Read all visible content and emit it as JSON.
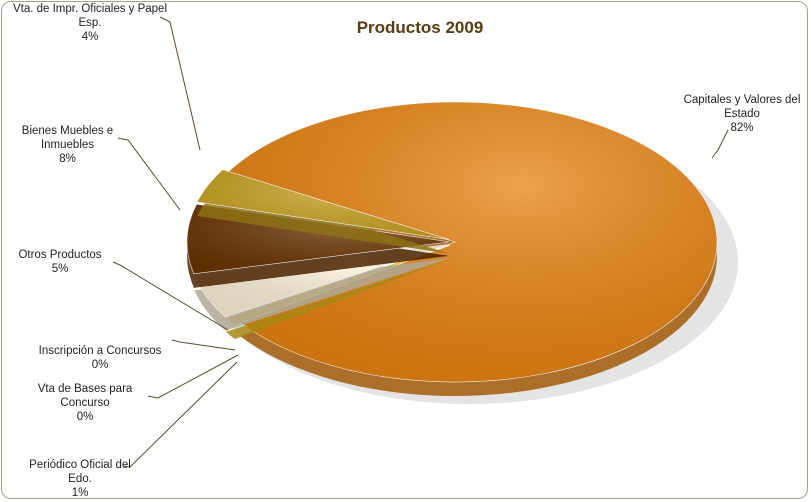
{
  "chart_data": {
    "type": "pie",
    "title": "Productos 2009",
    "categories": [
      "Capitales y Valores del Estado",
      "Periódico Oficial del Edo.",
      "Vta de Bases para Concurso",
      "Inscripción a Concursos",
      "Otros Productos",
      "Bienes Muebles e Inmuebles",
      "Vta. de Impr. Oficiales y Papel Esp."
    ],
    "values": [
      82,
      1,
      0,
      0,
      5,
      8,
      4
    ],
    "value_labels": [
      "82%",
      "1%",
      "0%",
      "0%",
      "5%",
      "8%",
      "4%"
    ],
    "colors": [
      "#e8820f",
      "#f2c21e",
      "#e6b63a",
      "#d9a531",
      "#fcf1d8",
      "#6b3400",
      "#c9a21f"
    ]
  }
}
